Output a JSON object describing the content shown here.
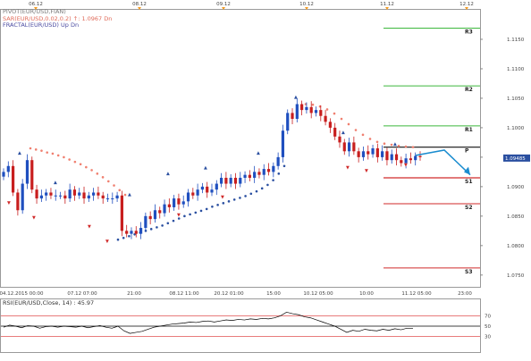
{
  "legend": {
    "pivot": "PIVOT(EUR/USD,FIAN)",
    "sar": "SAR(EUR/USD,0.02,0.2)   ↑: 1.0967   Dn",
    "fractal": "FRACTAL(EUR/USD)   Up  Dn"
  },
  "top_dates": [
    "06.12",
    "08.12",
    "09.12",
    "10.12",
    "11.12",
    "12.12"
  ],
  "rsi": {
    "title": "RSI(EUR/USD,Close, 14) : 45.97",
    "levels": [
      "70",
      "50",
      "30"
    ],
    "colors": {
      "line": "#000000",
      "level70": "#e05050",
      "level50": "#000000",
      "level30": "#e05050"
    }
  },
  "chart_data": {
    "type": "candlestick",
    "instrument": "EUR/USD",
    "x_tick_labels": [
      "04.12.2015 00:00",
      "07.12 07:00",
      "21:00",
      "08.12 11:00",
      "20.12 01:00",
      "15:00",
      "10.12 05:00",
      "10:00",
      "11.12 05:00",
      "23:00"
    ],
    "y_tick_labels": [
      "1.1150",
      "1.1100",
      "1.1050",
      "1.1000",
      "1.0950",
      "1.0900",
      "1.0850",
      "1.0800",
      "1.0750"
    ],
    "ylim": [
      1.073,
      1.12
    ],
    "pivot_levels": [
      {
        "name": "R3",
        "value": 1.1169
      },
      {
        "name": "R2",
        "value": 1.1071
      },
      {
        "name": "R1",
        "value": 1.1003
      },
      {
        "name": "P",
        "value": 1.0967
      },
      {
        "name": "S1",
        "value": 1.0915
      },
      {
        "name": "S2",
        "value": 1.0871
      },
      {
        "name": "S3",
        "value": 1.0762
      }
    ],
    "current_price": "1.09485",
    "forecast_path": [
      1.0953,
      1.0962,
      1.092
    ],
    "closes": [
      1.0925,
      1.0935,
      1.089,
      1.086,
      1.0905,
      1.0945,
      1.0895,
      1.088,
      1.0885,
      1.089,
      1.0885,
      1.0885,
      1.0885,
      1.088,
      1.0895,
      1.0885,
      1.089,
      1.088,
      1.0885,
      1.089,
      1.0885,
      1.088,
      1.088,
      1.088,
      1.0885,
      1.0825,
      1.082,
      1.0825,
      1.082,
      1.083,
      1.085,
      1.0845,
      1.086,
      1.0855,
      1.087,
      1.0865,
      1.088,
      1.087,
      1.0875,
      1.089,
      1.0885,
      1.0895,
      1.09,
      1.089,
      1.0895,
      1.0905,
      1.0915,
      1.0905,
      1.0915,
      1.0905,
      1.0915,
      1.092,
      1.0915,
      1.0925,
      1.092,
      1.093,
      1.0925,
      1.0935,
      1.095,
      1.0995,
      1.1025,
      1.1015,
      1.104,
      1.103,
      1.1035,
      1.1025,
      1.103,
      1.102,
      1.101,
      1.1,
      1.0985,
      1.0975,
      1.096,
      1.0975,
      1.096,
      1.095,
      1.096,
      1.0955,
      1.0965,
      1.095,
      1.096,
      1.0945,
      1.0955,
      1.0945,
      1.094,
      1.0948,
      1.0945,
      1.0952,
      1.095
    ],
    "sar_upper": [
      1.0965,
      1.0963,
      1.0961,
      1.0958,
      1.0956,
      1.0953,
      1.095,
      1.0946,
      1.0942,
      1.0938,
      1.0933,
      1.0928,
      1.0922,
      1.0916,
      1.0909,
      1.0902,
      1.0894,
      1.0886
    ],
    "sar_lower": [
      1.081,
      1.0813,
      1.0816,
      1.0819,
      1.0822,
      1.0825,
      1.0828,
      1.0831,
      1.0834,
      1.0838,
      1.0842,
      1.0846,
      1.085,
      1.0853,
      1.0856,
      1.0859,
      1.0862,
      1.0866,
      1.0869,
      1.0872,
      1.0875,
      1.0878,
      1.0881,
      1.0884,
      1.0888,
      1.0892,
      1.0897,
      1.0903,
      1.0911,
      1.0922,
      1.0935
    ],
    "sar_upper_2": [
      1.104,
      1.1039,
      1.1036,
      1.1031,
      1.1024,
      1.1015,
      1.1006,
      1.0996,
      1.0988,
      1.0981,
      1.0976,
      1.0973,
      1.0971,
      1.0969,
      1.0968,
      1.0967
    ],
    "rsi_values": [
      48,
      52,
      50,
      47,
      51,
      50,
      46,
      49,
      50,
      48,
      50,
      49,
      48,
      50,
      47,
      49,
      51,
      48,
      46,
      50,
      41,
      36,
      38,
      40,
      44,
      48,
      50,
      52,
      54,
      55,
      56,
      58,
      57,
      59,
      60,
      58,
      60,
      62,
      61,
      63,
      62,
      64,
      63,
      65,
      64,
      66,
      70,
      77,
      74,
      72,
      68,
      66,
      62,
      58,
      54,
      50,
      44,
      38,
      42,
      40,
      44,
      42,
      41,
      44,
      42,
      45,
      43,
      46,
      46
    ],
    "rsi_ylim": [
      0,
      100
    ]
  }
}
